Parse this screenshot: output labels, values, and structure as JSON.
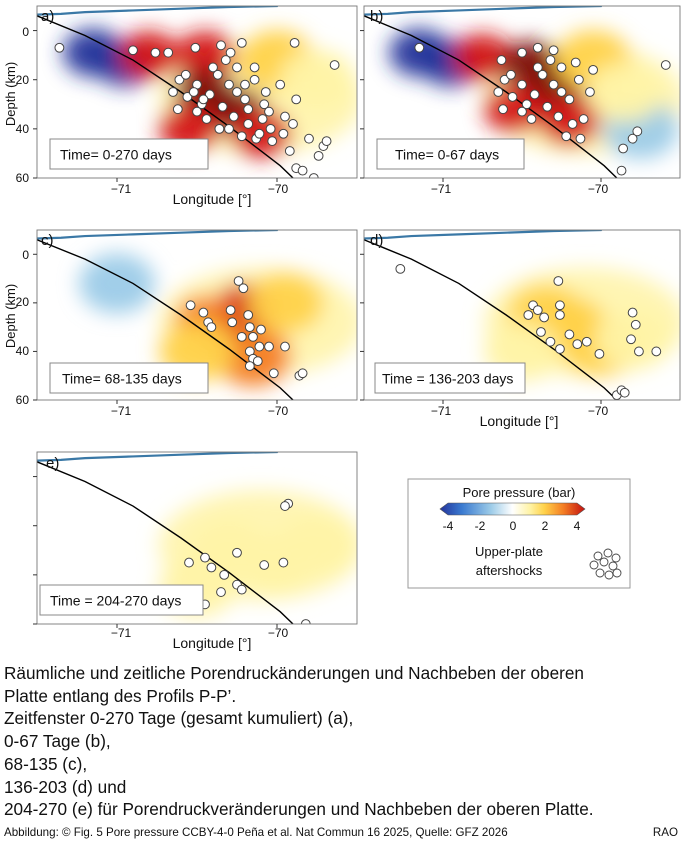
{
  "colors": {
    "neg_strong": "#23339a",
    "neg_mid": "#3a7ad0",
    "neg_light": "#9ccbe8",
    "zero": "#ffffff",
    "pos_light": "#fff3a6",
    "pos_mid": "#ffd24a",
    "pos_orange": "#f47e24",
    "pos_red": "#d41414",
    "pos_dark": "#7e0a0a",
    "topography": "#3a78a6",
    "slab": "#000000",
    "aftershock_fill": "#ffffff",
    "aftershock_edge": "#444444"
  },
  "chart_data": [
    {
      "type": "scatter",
      "panel": "a",
      "title": "Time= 0-270 days",
      "xlabel": "Longitude [°]",
      "ylabel": "Depth (km)",
      "xlim": [
        -71.5,
        -69.5
      ],
      "ylim": [
        60,
        -10
      ],
      "xticks": [
        "−71",
        "−70"
      ],
      "yticks": [
        "0",
        "20",
        "40",
        "60"
      ],
      "pressure_blobs": [
        {
          "lon": -71.15,
          "depth": 9,
          "value": -3.6
        },
        {
          "lon": -70.95,
          "depth": 13,
          "value": -3.2
        },
        {
          "lon": -70.8,
          "depth": 10,
          "value": 3.2
        },
        {
          "lon": -70.45,
          "depth": 10,
          "value": 3.6
        },
        {
          "lon": -70.45,
          "depth": 25,
          "value": 4.0
        },
        {
          "lon": -70.25,
          "depth": 33,
          "value": 3.8
        },
        {
          "lon": -70.1,
          "depth": 42,
          "value": 3.0
        },
        {
          "lon": -70.55,
          "depth": 40,
          "value": 3.5
        },
        {
          "lon": -70.0,
          "depth": 12,
          "value": 1.6
        },
        {
          "lon": -69.75,
          "depth": 20,
          "value": 0.9
        }
      ],
      "aftershocks": [
        [
          -71.36,
          7
        ],
        [
          -70.9,
          8
        ],
        [
          -70.76,
          9
        ],
        [
          -70.68,
          9
        ],
        [
          -70.51,
          7
        ],
        [
          -70.35,
          6
        ],
        [
          -70.29,
          9
        ],
        [
          -70.22,
          5
        ],
        [
          -69.89,
          5
        ],
        [
          -69.64,
          14
        ],
        [
          -70.61,
          20
        ],
        [
          -70.5,
          22
        ],
        [
          -70.42,
          26
        ],
        [
          -70.37,
          18
        ],
        [
          -70.3,
          22
        ],
        [
          -70.25,
          15
        ],
        [
          -70.2,
          28
        ],
        [
          -70.14,
          20
        ],
        [
          -70.08,
          30
        ],
        [
          -69.98,
          22
        ],
        [
          -70.65,
          25
        ],
        [
          -70.56,
          27
        ],
        [
          -70.47,
          30
        ],
        [
          -70.34,
          31
        ],
        [
          -70.27,
          35
        ],
        [
          -70.18,
          38
        ],
        [
          -70.09,
          36
        ],
        [
          -70.04,
          40
        ],
        [
          -69.96,
          42
        ],
        [
          -69.9,
          38
        ],
        [
          -70.62,
          32
        ],
        [
          -70.44,
          36
        ],
        [
          -70.36,
          40
        ],
        [
          -70.22,
          43
        ],
        [
          -70.13,
          44
        ],
        [
          -70.03,
          45
        ],
        [
          -69.8,
          44
        ],
        [
          -69.71,
          47
        ],
        [
          -69.74,
          51
        ],
        [
          -69.88,
          56
        ],
        [
          -69.84,
          57
        ],
        [
          -69.77,
          60
        ],
        [
          -70.57,
          18
        ],
        [
          -70.32,
          12
        ],
        [
          -70.14,
          15
        ],
        [
          -70.5,
          33
        ],
        [
          -70.25,
          25
        ],
        [
          -70.4,
          15
        ],
        [
          -70.07,
          25
        ],
        [
          -69.95,
          35
        ],
        [
          -70.3,
          40
        ],
        [
          -70.18,
          32
        ],
        [
          -69.88,
          28
        ],
        [
          -70.2,
          22
        ],
        [
          -70.11,
          42
        ],
        [
          -70.46,
          28
        ],
        [
          -70.52,
          25
        ],
        [
          -69.69,
          45
        ],
        [
          -69.92,
          49
        ],
        [
          -70.05,
          33
        ]
      ]
    },
    {
      "type": "scatter",
      "panel": "b",
      "title": "Time= 0-67 days",
      "xlabel": "Longitude [°]",
      "ylabel": "",
      "xlim": [
        -71.5,
        -69.5
      ],
      "ylim": [
        60,
        -10
      ],
      "xticks": [
        "−71",
        "−70"
      ],
      "yticks": [],
      "pressure_blobs": [
        {
          "lon": -71.15,
          "depth": 9,
          "value": -3.6
        },
        {
          "lon": -70.95,
          "depth": 13,
          "value": -3.3
        },
        {
          "lon": -70.75,
          "depth": 11,
          "value": 3.0
        },
        {
          "lon": -70.45,
          "depth": 14,
          "value": 3.8
        },
        {
          "lon": -70.3,
          "depth": 26,
          "value": 4.0
        },
        {
          "lon": -70.2,
          "depth": 37,
          "value": 3.6
        },
        {
          "lon": -70.55,
          "depth": 32,
          "value": 3.3
        },
        {
          "lon": -70.05,
          "depth": 12,
          "value": 1.4
        },
        {
          "lon": -69.75,
          "depth": 40,
          "value": -0.8
        },
        {
          "lon": -69.85,
          "depth": 25,
          "value": 0.8
        }
      ],
      "aftershocks": [
        [
          -71.15,
          7
        ],
        [
          -70.63,
          12
        ],
        [
          -70.5,
          9
        ],
        [
          -70.4,
          7
        ],
        [
          -70.3,
          8
        ],
        [
          -70.16,
          13
        ],
        [
          -70.05,
          16
        ],
        [
          -70.61,
          20
        ],
        [
          -70.5,
          22
        ],
        [
          -70.42,
          26
        ],
        [
          -70.37,
          18
        ],
        [
          -70.3,
          22
        ],
        [
          -70.25,
          15
        ],
        [
          -70.2,
          28
        ],
        [
          -70.14,
          20
        ],
        [
          -70.65,
          25
        ],
        [
          -70.56,
          27
        ],
        [
          -70.47,
          30
        ],
        [
          -70.34,
          31
        ],
        [
          -70.27,
          35
        ],
        [
          -70.18,
          38
        ],
        [
          -70.62,
          32
        ],
        [
          -70.44,
          36
        ],
        [
          -70.22,
          43
        ],
        [
          -70.13,
          44
        ],
        [
          -69.86,
          48
        ],
        [
          -69.8,
          44
        ],
        [
          -69.77,
          41
        ],
        [
          -69.59,
          14
        ],
        [
          -69.87,
          57
        ],
        [
          -70.32,
          12
        ],
        [
          -70.57,
          18
        ],
        [
          -70.25,
          25
        ],
        [
          -70.07,
          25
        ],
        [
          -70.11,
          36
        ],
        [
          -70.5,
          33
        ],
        [
          -70.4,
          15
        ]
      ]
    },
    {
      "type": "scatter",
      "panel": "c",
      "title": "Time= 68-135 days",
      "xlabel": "",
      "ylabel": "Depth (km)",
      "xlim": [
        -71.5,
        -69.5
      ],
      "ylim": [
        60,
        -10
      ],
      "xticks": [
        "−71",
        "−70"
      ],
      "yticks": [
        "0",
        "20",
        "40",
        "60"
      ],
      "pressure_blobs": [
        {
          "lon": -70.3,
          "depth": 32,
          "value": 4.0
        },
        {
          "lon": -70.2,
          "depth": 22,
          "value": 3.0
        },
        {
          "lon": -70.45,
          "depth": 27,
          "value": 2.5
        },
        {
          "lon": -70.15,
          "depth": 42,
          "value": 2.4
        },
        {
          "lon": -70.5,
          "depth": 40,
          "value": 1.6
        },
        {
          "lon": -69.95,
          "depth": 20,
          "value": 1.0
        },
        {
          "lon": -71.0,
          "depth": 12,
          "value": -0.4
        }
      ],
      "aftershocks": [
        [
          -70.54,
          21
        ],
        [
          -70.46,
          24
        ],
        [
          -70.43,
          28
        ],
        [
          -70.41,
          30
        ],
        [
          -70.24,
          11
        ],
        [
          -70.21,
          14
        ],
        [
          -70.29,
          23
        ],
        [
          -70.28,
          28
        ],
        [
          -70.18,
          25
        ],
        [
          -70.17,
          30
        ],
        [
          -70.15,
          34
        ],
        [
          -70.1,
          31
        ],
        [
          -70.11,
          38
        ],
        [
          -70.17,
          40
        ],
        [
          -70.15,
          43
        ],
        [
          -70.17,
          46
        ],
        [
          -70.12,
          44
        ],
        [
          -69.95,
          38
        ],
        [
          -70.02,
          49
        ],
        [
          -69.86,
          50
        ],
        [
          -69.84,
          49
        ],
        [
          -70.22,
          34
        ],
        [
          -70.05,
          38
        ]
      ]
    },
    {
      "type": "scatter",
      "panel": "d",
      "title": "Time = 136-203 days",
      "xlabel": "Longitude [°]",
      "ylabel": "",
      "xlim": [
        -71.5,
        -69.5
      ],
      "ylim": [
        60,
        -10
      ],
      "xticks": [
        "−71",
        "−70"
      ],
      "yticks": [],
      "pressure_blobs": [
        {
          "lon": -70.2,
          "depth": 30,
          "value": 1.6
        },
        {
          "lon": -70.0,
          "depth": 38,
          "value": 1.4
        },
        {
          "lon": -70.35,
          "depth": 25,
          "value": 1.1
        },
        {
          "lon": -69.8,
          "depth": 35,
          "value": 0.8
        },
        {
          "lon": -70.5,
          "depth": 40,
          "value": 0.6
        }
      ],
      "aftershocks": [
        [
          -71.27,
          6
        ],
        [
          -70.43,
          21
        ],
        [
          -70.4,
          23
        ],
        [
          -70.27,
          11
        ],
        [
          -70.26,
          21
        ],
        [
          -70.26,
          25
        ],
        [
          -70.36,
          26
        ],
        [
          -70.38,
          32
        ],
        [
          -70.32,
          36
        ],
        [
          -70.26,
          39
        ],
        [
          -70.2,
          33
        ],
        [
          -70.15,
          37
        ],
        [
          -70.09,
          36
        ],
        [
          -70.01,
          41
        ],
        [
          -69.81,
          35
        ],
        [
          -69.76,
          40
        ],
        [
          -69.65,
          40
        ],
        [
          -69.8,
          24
        ],
        [
          -69.78,
          29
        ],
        [
          -69.9,
          58
        ],
        [
          -69.87,
          56
        ],
        [
          -69.85,
          57
        ],
        [
          -70.46,
          25
        ]
      ]
    },
    {
      "type": "scatter",
      "panel": "e",
      "title": "Time = 204-270 days",
      "xlabel": "Longitude [°]",
      "ylabel": "",
      "xlim": [
        -71.5,
        -69.5
      ],
      "ylim": [
        60,
        -10
      ],
      "xticks": [
        "−71",
        "−70"
      ],
      "yticks": [],
      "pressure_blobs": [
        {
          "lon": -70.0,
          "depth": 35,
          "value": 0.9
        },
        {
          "lon": -70.3,
          "depth": 30,
          "value": 0.7
        },
        {
          "lon": -69.75,
          "depth": 28,
          "value": 0.6
        },
        {
          "lon": -70.5,
          "depth": 45,
          "value": 0.4
        }
      ],
      "aftershocks": [
        [
          -69.93,
          11
        ],
        [
          -69.95,
          12
        ],
        [
          -70.45,
          33
        ],
        [
          -70.55,
          35
        ],
        [
          -70.41,
          37
        ],
        [
          -70.33,
          40
        ],
        [
          -70.25,
          31
        ],
        [
          -70.08,
          36
        ],
        [
          -69.96,
          35
        ],
        [
          -70.35,
          47
        ],
        [
          -70.25,
          44
        ],
        [
          -70.22,
          46
        ],
        [
          -70.45,
          52
        ],
        [
          -69.82,
          60
        ]
      ]
    }
  ],
  "legend": {
    "title": "Pore pressure (bar)",
    "ticks": [
      "-4",
      "-2",
      "0",
      "2",
      "4"
    ],
    "range": [
      -4,
      4
    ],
    "marker_label_1": "Upper-plate",
    "marker_label_2": "aftershocks"
  },
  "caption": {
    "line1": "Räumliche und zeitliche Porendruckänderungen und Nachbeben der oberen",
    "line2": "Platte entlang des Profils P-P’.",
    "line3": "Zeitfenster 0-270 Tage (gesamt kumuliert) (a),",
    "line4": "0-67 Tage (b),",
    "line5": "68-135 (c),",
    "line6": "136-203 (d) und",
    "line7": "204-270 (e) für Porendruckveränderungen und Nachbeben der oberen Platte."
  },
  "footer": {
    "credit": "Abbildung: © Fig. 5 Pore pressure CCBY-4-0 Peña et al. Nat Commun 16 2025, Quelle:  GFZ 2026",
    "agency": "RAO"
  }
}
